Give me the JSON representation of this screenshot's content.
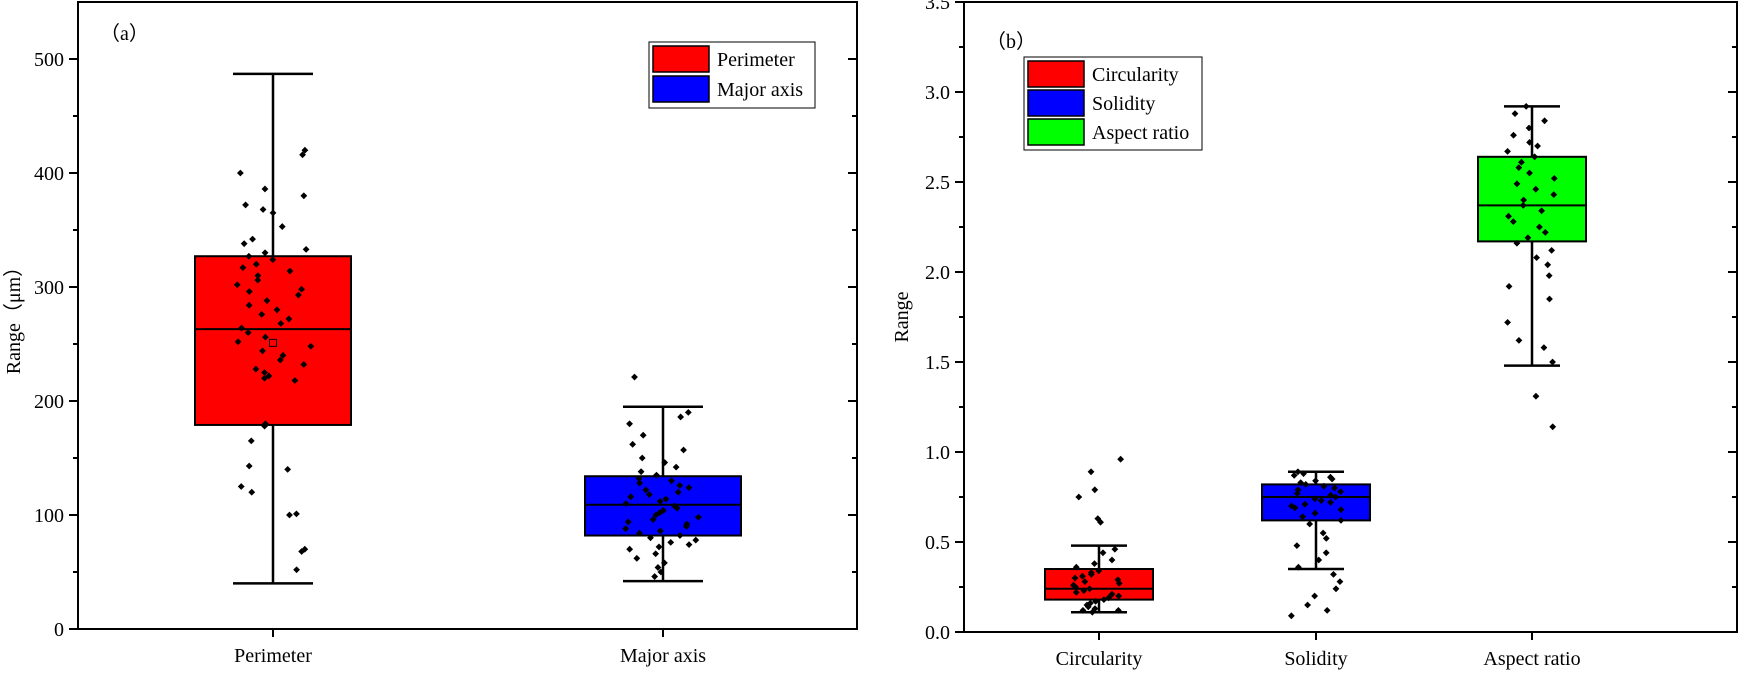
{
  "chart_data": [
    {
      "type": "box",
      "panel_label": "（a）",
      "ylabel": "Range（μm）",
      "ylim": [
        0,
        550
      ],
      "yticks": [
        0,
        100,
        200,
        300,
        400,
        500
      ],
      "legend_position": "top-right",
      "categories": [
        "Perimeter",
        "Major axis"
      ],
      "series": [
        {
          "name": "Perimeter",
          "color": "#ff0000",
          "whisker_low": 40,
          "q1": 179,
          "median": 263,
          "q3": 327,
          "whisker_high": 487,
          "mean": 251,
          "points": [
            416,
            420,
            400,
            386,
            380,
            372,
            368,
            365,
            353,
            342,
            338,
            333,
            330,
            327,
            324,
            320,
            317,
            314,
            310,
            306,
            302,
            298,
            296,
            293,
            288,
            284,
            280,
            276,
            272,
            268,
            264,
            260,
            256,
            252,
            248,
            244,
            240,
            236,
            232,
            228,
            225,
            222,
            220,
            218,
            180,
            178,
            165,
            143,
            140,
            125,
            120,
            100,
            101,
            70,
            68,
            52
          ]
        },
        {
          "name": "Major axis",
          "color": "#0000ff",
          "whisker_low": 42,
          "q1": 82,
          "median": 109,
          "q3": 134,
          "whisker_high": 195,
          "points": [
            221,
            190,
            186,
            180,
            170,
            162,
            157,
            150,
            146,
            142,
            138,
            135,
            132,
            130,
            128,
            126,
            124,
            122,
            120,
            118,
            116,
            114,
            112,
            110,
            108,
            106,
            104,
            102,
            100,
            98,
            96,
            94,
            92,
            90,
            88,
            86,
            84,
            82,
            80,
            78,
            76,
            74,
            72,
            70,
            66,
            62,
            58,
            54,
            50,
            46
          ]
        }
      ]
    },
    {
      "type": "box",
      "panel_label": "（b）",
      "ylabel": "Range",
      "ylim": [
        0,
        3.5
      ],
      "yticks": [
        0.0,
        0.5,
        1.0,
        1.5,
        2.0,
        2.5,
        3.0,
        3.5
      ],
      "ytick_labels": [
        "0.0",
        "0.5",
        "1.0",
        "1.5",
        "2.0",
        "2.5",
        "3.0",
        "3.5"
      ],
      "legend_position": "top-left",
      "categories": [
        "Circularity",
        "Solidity",
        "Aspect ratio"
      ],
      "series": [
        {
          "name": "Circularity",
          "color": "#ff0000",
          "whisker_low": 0.11,
          "q1": 0.18,
          "median": 0.24,
          "q3": 0.35,
          "whisker_high": 0.48,
          "points": [
            0.96,
            0.89,
            0.79,
            0.75,
            0.63,
            0.61,
            0.46,
            0.44,
            0.4,
            0.38,
            0.36,
            0.34,
            0.33,
            0.32,
            0.31,
            0.3,
            0.29,
            0.28,
            0.27,
            0.26,
            0.25,
            0.24,
            0.23,
            0.22,
            0.21,
            0.2,
            0.19,
            0.18,
            0.17,
            0.16,
            0.15,
            0.14,
            0.13,
            0.12,
            0.12,
            0.11
          ]
        },
        {
          "name": "Solidity",
          "color": "#0000ff",
          "whisker_low": 0.35,
          "q1": 0.62,
          "median": 0.75,
          "q3": 0.82,
          "whisker_high": 0.89,
          "points": [
            0.89,
            0.88,
            0.87,
            0.86,
            0.85,
            0.84,
            0.83,
            0.82,
            0.81,
            0.8,
            0.79,
            0.78,
            0.77,
            0.76,
            0.75,
            0.74,
            0.73,
            0.72,
            0.71,
            0.7,
            0.69,
            0.68,
            0.66,
            0.64,
            0.62,
            0.6,
            0.55,
            0.52,
            0.48,
            0.44,
            0.4,
            0.36,
            0.32,
            0.28,
            0.24,
            0.2,
            0.15,
            0.12,
            0.09
          ]
        },
        {
          "name": "Aspect ratio",
          "color": "#00ff00",
          "whisker_low": 1.48,
          "q1": 2.17,
          "median": 2.37,
          "q3": 2.64,
          "whisker_high": 2.92,
          "points": [
            2.92,
            2.88,
            2.84,
            2.8,
            2.76,
            2.72,
            2.7,
            2.67,
            2.64,
            2.61,
            2.58,
            2.55,
            2.52,
            2.49,
            2.46,
            2.43,
            2.4,
            2.37,
            2.34,
            2.31,
            2.28,
            2.25,
            2.22,
            2.19,
            2.16,
            2.12,
            2.08,
            2.04,
            1.98,
            1.92,
            1.85,
            1.72,
            1.62,
            1.58,
            1.5,
            1.31,
            1.14
          ]
        }
      ]
    }
  ]
}
